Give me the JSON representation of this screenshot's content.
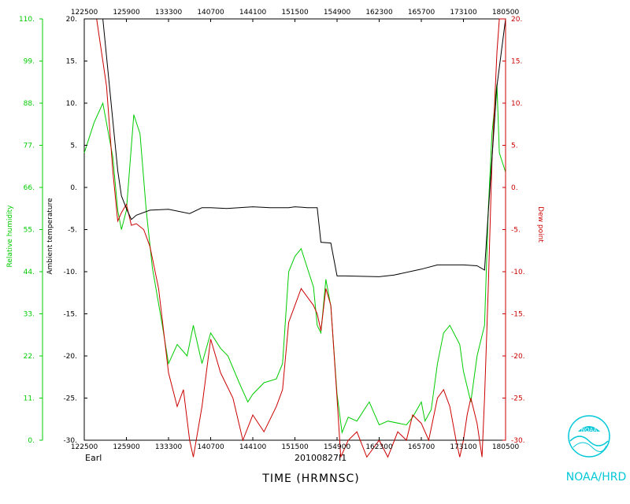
{
  "chart_data": {
    "type": "line",
    "x": {
      "ticks": [
        "122500",
        "125900",
        "133300",
        "140700",
        "144100",
        "151500",
        "154900",
        "162300",
        "165700",
        "173100",
        "180500"
      ],
      "label": "TIME (HRMNSC)"
    },
    "axes": {
      "temperature": {
        "label": "Ambient temperature",
        "ticks": [
          "20.",
          "15.",
          "10.",
          "5.",
          "0.",
          "-5.",
          "-10.",
          "-15.",
          "-20.",
          "-25.",
          "-30."
        ],
        "range": [
          -30,
          20
        ],
        "color": "#000000"
      },
      "humidity": {
        "label": "Relative humidity",
        "ticks": [
          "110.",
          "99.",
          "88.",
          "77.",
          "66.",
          "55.",
          "44.",
          "33.",
          "22.",
          "11.",
          "0."
        ],
        "range": [
          0,
          110
        ],
        "color": "#00cc00"
      },
      "dewpoint": {
        "label": "Dew point",
        "ticks": [
          "20.",
          "15.",
          "10.",
          "5.",
          "0.",
          "-5.",
          "-10.",
          "-15.",
          "-20.",
          "-25.",
          "-30."
        ],
        "range": [
          -30,
          20
        ],
        "color": "#cc0000"
      }
    },
    "series": [
      {
        "name": "Ambient temperature",
        "color": "#000000",
        "x": [
          "122500",
          "124000",
          "125200",
          "125500",
          "125900",
          "130300",
          "130700",
          "131800",
          "133300",
          "135000",
          "140000",
          "140700",
          "142000",
          "144100",
          "145500",
          "151000",
          "151500",
          "152500",
          "153300",
          "153600",
          "154400",
          "154900",
          "155500",
          "162300",
          "163500",
          "165700",
          "171000",
          "173100",
          "174200",
          "174800",
          "175100",
          "175800",
          "180500"
        ],
        "y": [
          20,
          20,
          2,
          -1,
          -2.5,
          -3.8,
          -3.3,
          -2.7,
          -2.6,
          -3.1,
          -2.4,
          -2.4,
          -2.5,
          -2.3,
          -2.4,
          -2.4,
          -2.3,
          -2.4,
          -2.4,
          -6.5,
          -6.6,
          -10.5,
          -10.5,
          -10.6,
          -10.4,
          -9.7,
          -9.2,
          -9.2,
          -9.3,
          -9.8,
          -3,
          12,
          20
        ]
      },
      {
        "name": "Relative humidity",
        "color": "#00cc00",
        "x": [
          "122500",
          "123300",
          "124000",
          "124800",
          "125200",
          "125500",
          "125900",
          "130500",
          "131000",
          "131500",
          "132000",
          "132800",
          "133300",
          "134000",
          "134800",
          "135300",
          "140000",
          "140700",
          "141500",
          "142100",
          "143000",
          "143700",
          "144100",
          "145000",
          "150000",
          "150500",
          "151000",
          "151500",
          "152000",
          "152500",
          "153000",
          "153300",
          "153600",
          "154000",
          "154400",
          "154900",
          "155300",
          "155800",
          "160500",
          "161500",
          "162300",
          "163000",
          "164500",
          "165000",
          "165700",
          "170000",
          "170500",
          "171000",
          "171500",
          "172000",
          "172800",
          "173100",
          "173700",
          "174200",
          "174800",
          "175100",
          "175400",
          "175800",
          "180000",
          "180500"
        ],
        "y": [
          75,
          83,
          88,
          74,
          60,
          55,
          60,
          85,
          80,
          60,
          45,
          30,
          20,
          25,
          22,
          30,
          20,
          28,
          24,
          22,
          15,
          10,
          12,
          15,
          16,
          20,
          44,
          48,
          50,
          45,
          40,
          30,
          28,
          42,
          35,
          12,
          2,
          6,
          5,
          10,
          4,
          5,
          4,
          6,
          10,
          5,
          8,
          20,
          28,
          30,
          25,
          18,
          10,
          22,
          30,
          60,
          80,
          93,
          75,
          70
        ]
      },
      {
        "name": "Dew point",
        "color": "#cc0000",
        "x": [
          "122500",
          "123500",
          "124300",
          "124800",
          "125200",
          "125500",
          "125900",
          "130300",
          "130700",
          "131300",
          "131800",
          "132500",
          "133300",
          "134000",
          "134500",
          "135000",
          "135300",
          "140000",
          "140700",
          "141500",
          "142500",
          "143300",
          "144100",
          "145000",
          "150000",
          "150500",
          "151000",
          "151500",
          "152000",
          "152500",
          "153000",
          "153300",
          "153600",
          "154000",
          "154400",
          "154900",
          "155200",
          "155800",
          "160500",
          "161300",
          "162300",
          "163000",
          "163800",
          "164500",
          "165000",
          "165700",
          "170300",
          "171000",
          "171500",
          "172000",
          "172500",
          "172800",
          "173100",
          "173400",
          "173700",
          "174200",
          "174600",
          "174800",
          "175100",
          "175400",
          "175800",
          "180000",
          "180500"
        ],
        "y": [
          20,
          20,
          12,
          2,
          -4,
          -3,
          -2,
          -4.5,
          -4.3,
          -5,
          -7,
          -12,
          -22,
          -26,
          -24,
          -30,
          -32,
          -26,
          -18,
          -22,
          -25,
          -30,
          -27,
          -29,
          -26,
          -24,
          -16,
          -14,
          -12,
          -13,
          -14,
          -15,
          -17,
          -12,
          -14,
          -25,
          -32,
          -30,
          -29,
          -32,
          -30,
          -32,
          -29,
          -30,
          -27,
          -28,
          -30,
          -25,
          -24,
          -26,
          -30,
          -32,
          -30,
          -27,
          -25,
          -28,
          -32,
          -25,
          -12,
          3,
          16,
          20,
          20
        ]
      }
    ],
    "grid": false,
    "footer": {
      "left": "Earl",
      "center": "20100827I1"
    }
  },
  "branding": {
    "logo_text": "NOAA/HRD",
    "logo_label": "NOAA",
    "color": "#00c8d8"
  }
}
